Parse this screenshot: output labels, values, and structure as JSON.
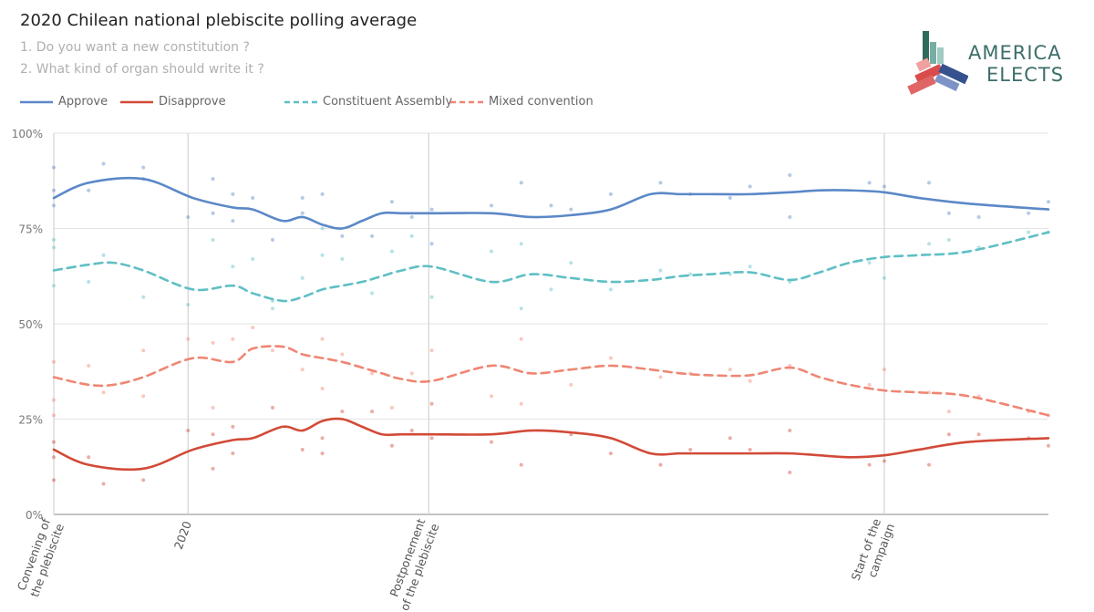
{
  "header": {
    "title": "2020 Chilean national plebiscite polling average",
    "question1": "1.  Do you want a new constitution ?",
    "question2": "2.  What kind of organ should write it ?"
  },
  "logo": {
    "line1": "AMERICA",
    "line2": "ELECTS"
  },
  "colors": {
    "approve": "#5b88c7",
    "disapprove": "#d24a38",
    "constituent": "#5fbfc4",
    "mixed": "#ef8673",
    "grid": "#e3e3e3",
    "axis": "#888888"
  },
  "chart_data": {
    "type": "line",
    "title": "2020 Chilean national plebiscite polling average",
    "xlabel": "",
    "ylabel": "",
    "x_domain": [
      0,
      100
    ],
    "ylim": [
      0,
      100
    ],
    "y_ticks": [
      0,
      25,
      50,
      75,
      100
    ],
    "y_tick_labels": [
      "0%",
      "25%",
      "50%",
      "75%",
      "100%"
    ],
    "events": [
      {
        "x": 0,
        "label_lines": [
          "Convening of",
          "the plebiscite"
        ],
        "vline": true
      },
      {
        "x": 13.5,
        "label_lines": [
          "2020"
        ],
        "vline": true
      },
      {
        "x": 37.7,
        "label_lines": [
          "Postponement",
          "of the plebiscite"
        ],
        "vline": true
      },
      {
        "x": 83.5,
        "label_lines": [
          "Start of the",
          "campaign"
        ],
        "vline": true
      }
    ],
    "series": [
      {
        "name": "Approve",
        "key": "approve",
        "dashed": false,
        "x": [
          0,
          3.5,
          9,
          14,
          18,
          20,
          23,
          25,
          27,
          29,
          31,
          33,
          35,
          38,
          44,
          48,
          52,
          56,
          60,
          63,
          66,
          70,
          74,
          77,
          80,
          83.5,
          87,
          92,
          100
        ],
        "y": [
          83,
          87,
          88,
          83,
          80.5,
          80,
          77,
          78,
          76,
          75,
          77,
          79,
          79,
          79,
          79,
          78,
          78.5,
          80,
          84,
          84,
          84,
          84,
          84.5,
          85,
          85,
          84.5,
          83,
          81.5,
          80
        ],
        "points": [
          [
            0,
            91
          ],
          [
            0,
            85
          ],
          [
            0,
            81
          ],
          [
            3.5,
            85
          ],
          [
            5,
            92
          ],
          [
            9,
            91
          ],
          [
            9,
            88
          ],
          [
            13.5,
            78
          ],
          [
            16,
            88
          ],
          [
            16,
            79
          ],
          [
            18,
            84
          ],
          [
            18,
            77
          ],
          [
            20,
            83
          ],
          [
            22,
            72
          ],
          [
            25,
            83
          ],
          [
            25,
            79
          ],
          [
            27,
            84
          ],
          [
            29,
            73
          ],
          [
            32,
            73
          ],
          [
            34,
            82
          ],
          [
            36,
            78
          ],
          [
            38,
            80
          ],
          [
            38,
            71
          ],
          [
            44,
            81
          ],
          [
            47,
            87
          ],
          [
            50,
            81
          ],
          [
            52,
            80
          ],
          [
            56,
            84
          ],
          [
            61,
            87
          ],
          [
            64,
            84
          ],
          [
            68,
            83
          ],
          [
            70,
            86
          ],
          [
            74,
            89
          ],
          [
            74,
            78
          ],
          [
            82,
            87
          ],
          [
            83.5,
            86
          ],
          [
            88,
            87
          ],
          [
            90,
            79
          ],
          [
            93,
            78
          ],
          [
            98,
            79
          ],
          [
            100,
            82
          ]
        ]
      },
      {
        "name": "Disapprove",
        "key": "disapprove",
        "dashed": false,
        "x": [
          0,
          3.5,
          9,
          14,
          18,
          20,
          23,
          25,
          27,
          29,
          31,
          33,
          35,
          38,
          44,
          48,
          52,
          56,
          60,
          63,
          66,
          70,
          74,
          77,
          80,
          83.5,
          87,
          92,
          100
        ],
        "y": [
          17,
          13,
          12,
          17,
          19.5,
          20,
          23,
          22,
          24.5,
          25,
          23,
          21,
          21,
          21,
          21,
          22,
          21.5,
          20,
          16,
          16,
          16,
          16,
          16,
          15.5,
          15,
          15.5,
          17,
          19,
          20
        ],
        "points": [
          [
            0,
            9
          ],
          [
            0,
            15
          ],
          [
            0,
            19
          ],
          [
            3.5,
            15
          ],
          [
            5,
            8
          ],
          [
            9,
            9
          ],
          [
            13.5,
            22
          ],
          [
            16,
            12
          ],
          [
            16,
            21
          ],
          [
            18,
            23
          ],
          [
            18,
            16
          ],
          [
            22,
            28
          ],
          [
            25,
            17
          ],
          [
            27,
            16
          ],
          [
            27,
            20
          ],
          [
            29,
            27
          ],
          [
            32,
            27
          ],
          [
            34,
            18
          ],
          [
            36,
            22
          ],
          [
            38,
            20
          ],
          [
            38,
            29
          ],
          [
            44,
            19
          ],
          [
            47,
            13
          ],
          [
            52,
            21
          ],
          [
            56,
            16
          ],
          [
            61,
            13
          ],
          [
            64,
            17
          ],
          [
            68,
            20
          ],
          [
            70,
            17
          ],
          [
            74,
            11
          ],
          [
            74,
            22
          ],
          [
            82,
            13
          ],
          [
            83.5,
            14
          ],
          [
            88,
            13
          ],
          [
            90,
            21
          ],
          [
            93,
            21
          ],
          [
            98,
            20
          ],
          [
            100,
            18
          ]
        ]
      },
      {
        "name": "Constituent Assembly",
        "key": "constituent",
        "dashed": true,
        "x": [
          0,
          3.5,
          6,
          9,
          14,
          18,
          20,
          23,
          25,
          27,
          29,
          31,
          33,
          35,
          38,
          44,
          48,
          52,
          56,
          60,
          63,
          66,
          70,
          74,
          77,
          80,
          83.5,
          87,
          92,
          100
        ],
        "y": [
          64,
          65.5,
          66,
          64,
          59,
          60,
          58,
          56,
          57,
          59,
          60,
          61,
          62.5,
          64,
          65,
          61,
          63,
          62,
          61,
          61.5,
          62.5,
          63,
          63.5,
          61.5,
          63.5,
          66,
          67.5,
          68,
          69,
          74
        ],
        "points": [
          [
            0,
            72
          ],
          [
            0,
            70
          ],
          [
            0,
            60
          ],
          [
            3.5,
            61
          ],
          [
            5,
            68
          ],
          [
            9,
            57
          ],
          [
            13.5,
            55
          ],
          [
            16,
            72
          ],
          [
            18,
            65
          ],
          [
            20,
            67
          ],
          [
            22,
            54
          ],
          [
            22,
            56
          ],
          [
            25,
            62
          ],
          [
            27,
            68
          ],
          [
            27,
            75
          ],
          [
            29,
            67
          ],
          [
            32,
            58
          ],
          [
            34,
            69
          ],
          [
            36,
            73
          ],
          [
            38,
            57
          ],
          [
            44,
            69
          ],
          [
            47,
            71
          ],
          [
            47,
            54
          ],
          [
            50,
            59
          ],
          [
            52,
            66
          ],
          [
            56,
            59
          ],
          [
            61,
            64
          ],
          [
            64,
            63
          ],
          [
            68,
            63
          ],
          [
            70,
            65
          ],
          [
            74,
            61
          ],
          [
            82,
            66
          ],
          [
            83.5,
            62
          ],
          [
            88,
            71
          ],
          [
            90,
            72
          ],
          [
            93,
            70
          ],
          [
            98,
            74
          ],
          [
            100,
            74
          ]
        ]
      },
      {
        "name": "Mixed convention",
        "key": "mixed",
        "dashed": true,
        "x": [
          0,
          3.5,
          6,
          9,
          14,
          18,
          20,
          23,
          25,
          27,
          29,
          31,
          33,
          35,
          38,
          44,
          48,
          52,
          56,
          60,
          63,
          66,
          70,
          74,
          77,
          80,
          83.5,
          87,
          92,
          100
        ],
        "y": [
          36,
          34,
          34,
          36,
          41,
          40,
          43.5,
          44,
          42,
          41,
          40,
          38.5,
          37,
          35.5,
          35,
          39,
          37,
          38,
          39,
          38,
          37,
          36.5,
          36.5,
          38.5,
          36,
          34,
          32.5,
          32,
          31,
          26
        ],
        "points": [
          [
            0,
            26
          ],
          [
            0,
            30
          ],
          [
            0,
            40
          ],
          [
            3.5,
            39
          ],
          [
            5,
            32
          ],
          [
            9,
            43
          ],
          [
            9,
            31
          ],
          [
            13.5,
            46
          ],
          [
            16,
            45
          ],
          [
            16,
            28
          ],
          [
            18,
            46
          ],
          [
            20,
            49
          ],
          [
            22,
            43
          ],
          [
            25,
            38
          ],
          [
            27,
            46
          ],
          [
            27,
            33
          ],
          [
            29,
            42
          ],
          [
            32,
            37
          ],
          [
            34,
            28
          ],
          [
            36,
            37
          ],
          [
            38,
            43
          ],
          [
            44,
            31
          ],
          [
            47,
            46
          ],
          [
            47,
            29
          ],
          [
            52,
            34
          ],
          [
            56,
            41
          ],
          [
            61,
            36
          ],
          [
            64,
            37
          ],
          [
            68,
            38
          ],
          [
            70,
            35
          ],
          [
            74,
            39
          ],
          [
            82,
            34
          ],
          [
            83.5,
            38
          ],
          [
            88,
            32
          ],
          [
            90,
            27
          ],
          [
            93,
            31
          ],
          [
            98,
            27
          ],
          [
            100,
            26
          ]
        ]
      }
    ]
  }
}
